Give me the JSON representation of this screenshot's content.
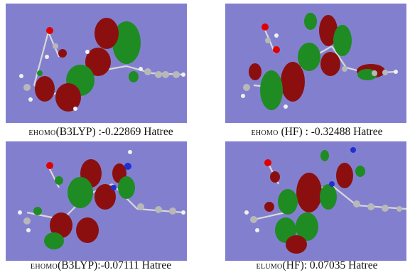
{
  "colors": {
    "background": "#8280ce",
    "lobe_red": "#8c0f10",
    "lobe_green": "#1f8b23",
    "atom_carbon": "#b8b8b8",
    "atom_hydrogen": "#f0f0f0",
    "atom_oxygen": "#e00000",
    "atom_nitrogen": "#2030d0"
  },
  "panels": [
    {
      "caption_prefix": "EHOMO",
      "caption_rest": "(B3LYP) :-0.22869 Hatree"
    },
    {
      "caption_prefix": "EHOMO",
      "caption_rest": " (HF) : -0.32488 Hatree"
    },
    {
      "caption_prefix": "EHOMO",
      "caption_rest": "(B3LYP):-0.07111 Hatree"
    },
    {
      "caption_prefix": "ELUMO",
      "caption_rest": "(HF): 0.07035 Hatree"
    }
  ]
}
